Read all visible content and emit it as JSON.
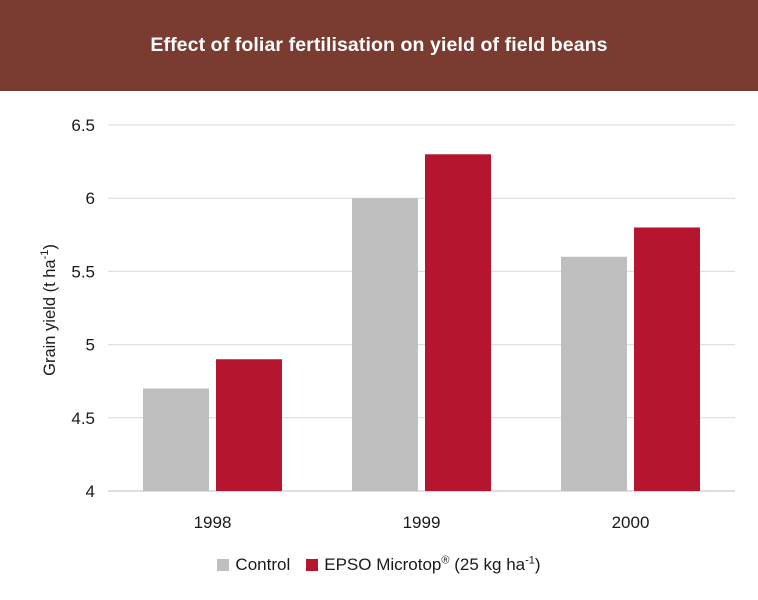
{
  "header": {
    "title": "Effect of foliar fertilisation on yield of field beans"
  },
  "chart_data": {
    "type": "bar",
    "title": "Effect of foliar fertilisation on yield of field beans",
    "ylabel": {
      "main": "Grain yield (t ha",
      "sup": "-1",
      "close": ")"
    },
    "xlabel": "",
    "ylim": [
      4,
      6.5
    ],
    "yticks": [
      4,
      4.5,
      5,
      5.5,
      6,
      6.5
    ],
    "ytick_labels": [
      "4",
      "4.5",
      "5",
      "5.5",
      "6",
      "6.5"
    ],
    "categories": [
      "1998",
      "1999",
      "2000"
    ],
    "series": [
      {
        "name": "Control",
        "values": [
          4.7,
          6.0,
          5.6
        ],
        "color": "#bfbfbf"
      },
      {
        "name": "EPSO Microtop® (25 kg ha-1)",
        "values": [
          4.9,
          6.3,
          5.8
        ],
        "color": "#b5152e"
      }
    ],
    "grid": true,
    "legend_position": "bottom"
  },
  "legend": {
    "control_label": "Control",
    "epso_label_main": "EPSO Microtop",
    "epso_label_reg": "®",
    "epso_label_mid": " (25 kg ha",
    "epso_label_sup": "-1",
    "epso_label_end": ")"
  }
}
